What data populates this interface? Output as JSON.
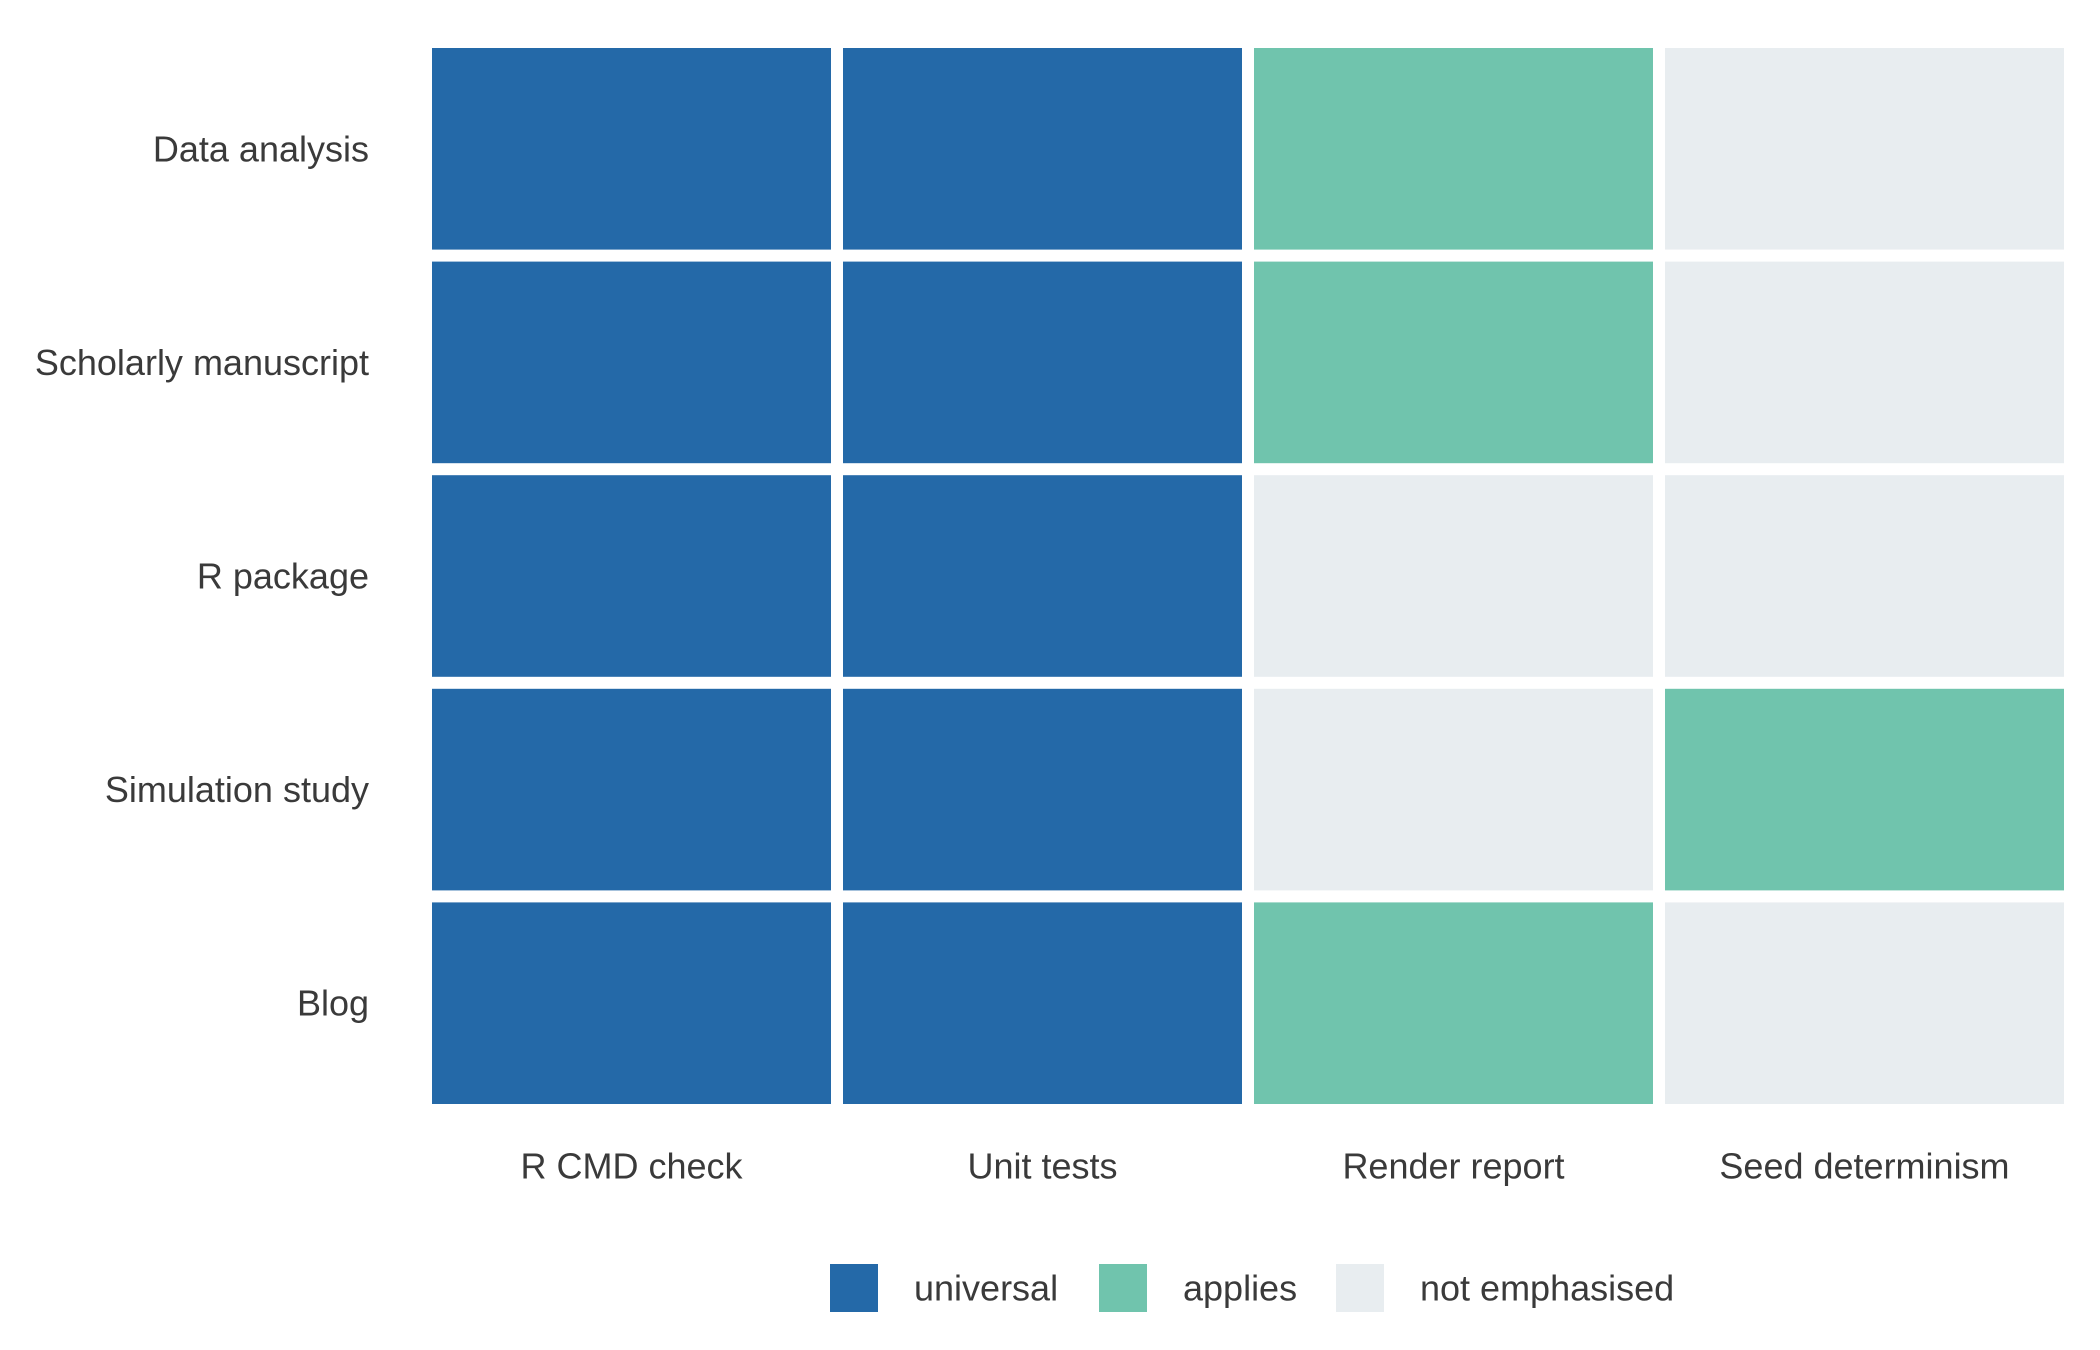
{
  "chart_data": {
    "type": "heatmap",
    "title": "",
    "xlabel": "",
    "ylabel": "",
    "x": [
      "R CMD check",
      "Unit tests",
      "Render report",
      "Seed determinism"
    ],
    "y": [
      "Data analysis",
      "Scholarly manuscript",
      "R package",
      "Simulation study",
      "Blog"
    ],
    "values": [
      [
        "universal",
        "universal",
        "applies",
        "not emphasised"
      ],
      [
        "universal",
        "universal",
        "applies",
        "not emphasised"
      ],
      [
        "universal",
        "universal",
        "not emphasised",
        "not emphasised"
      ],
      [
        "universal",
        "universal",
        "not emphasised",
        "applies"
      ],
      [
        "universal",
        "universal",
        "applies",
        "not emphasised"
      ]
    ],
    "legend": {
      "placement": "bottom",
      "entries": [
        {
          "label": "universal",
          "color": "#2469a8"
        },
        {
          "label": "applies",
          "color": "#70c4ad"
        },
        {
          "label": "not emphasised",
          "color": "#e8edf0"
        }
      ]
    },
    "grid": false
  }
}
